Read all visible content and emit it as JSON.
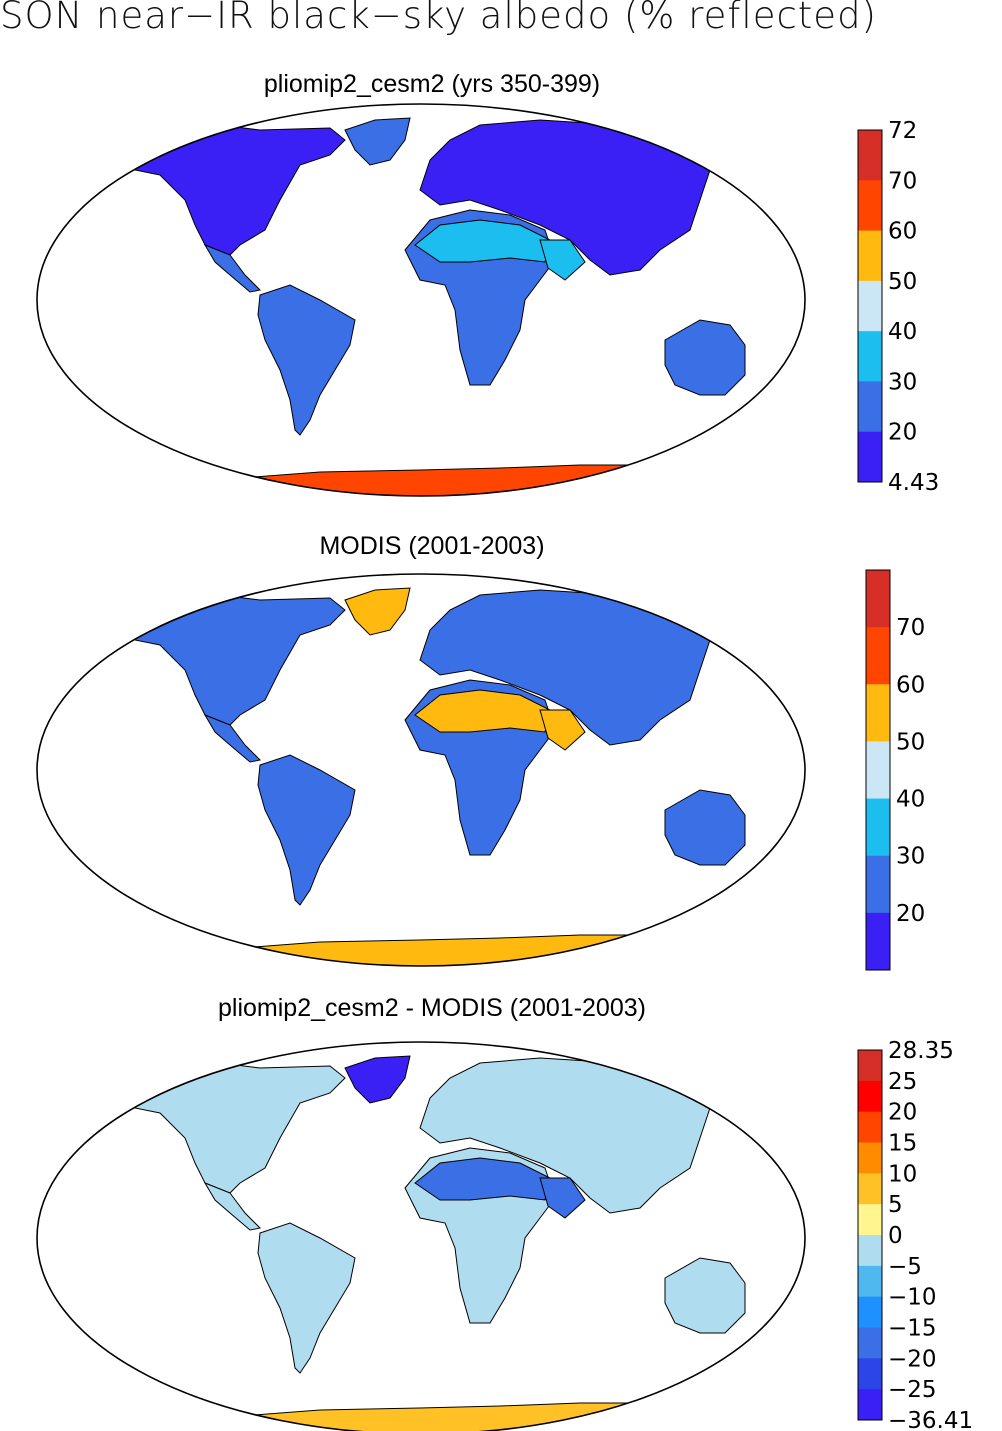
{
  "figure": {
    "title": "SON near−IR black−sky albedo (% reflected)"
  },
  "panels": [
    {
      "title": "pliomip2_cesm2 (yrs 350-399)",
      "colorbar": {
        "labels": [
          "72",
          "70",
          "60",
          "50",
          "40",
          "30",
          "20",
          "4.43"
        ],
        "colors": [
          "#d62f27",
          "#ff4500",
          "#ffb90f",
          "#cbe7f6",
          "#1cbef0",
          "#3a6fe6",
          "#3a20f5"
        ]
      },
      "regions": {
        "northern_land": "#3a20f5",
        "mid_land": "#3a6fe6",
        "deserts": "#1cbef0",
        "greenland": "#3a6fe6",
        "antarctica": "#ff4500"
      }
    },
    {
      "title": "MODIS (2001-2003)",
      "colorbar": {
        "labels": [
          "70",
          "60",
          "50",
          "40",
          "30",
          "20"
        ],
        "colors": [
          "#d62f27",
          "#ff4500",
          "#ffb90f",
          "#cbe7f6",
          "#1cbef0",
          "#3a6fe6",
          "#3a20f5"
        ]
      },
      "regions": {
        "northern_land": "#3a6fe6",
        "mid_land": "#3a6fe6",
        "deserts": "#ffb90f",
        "greenland": "#ffb90f",
        "antarctica": "#ffb90f"
      }
    },
    {
      "title": "pliomip2_cesm2 - MODIS (2001-2003)",
      "colorbar": {
        "labels": [
          "28.35",
          "25",
          "20",
          "15",
          "10",
          "5",
          "0",
          "−5",
          "−10",
          "−15",
          "−20",
          "−25",
          "−36.41"
        ],
        "colors": [
          "#d62f27",
          "#ff0000",
          "#ff4500",
          "#ff8c00",
          "#ffc125",
          "#fff68f",
          "#b0dcef",
          "#4fb8ef",
          "#1e90ff",
          "#3a6fe6",
          "#2b45e8",
          "#3a20f5"
        ]
      },
      "regions": {
        "northern_land": "#b0dcef",
        "mid_land": "#b0dcef",
        "deserts": "#3a6fe6",
        "greenland": "#3a20f5",
        "antarctica": "#ffc125"
      }
    }
  ]
}
